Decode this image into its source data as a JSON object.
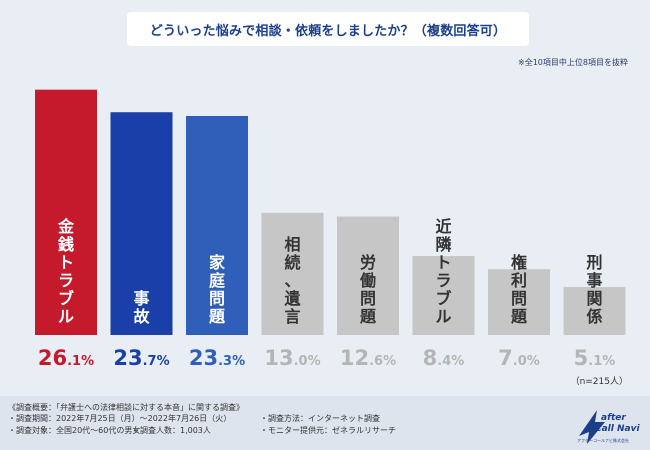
{
  "header": {
    "title": "どういった悩みで相談・依頼をしましたか？（複数回答可）",
    "note": "※全10項目中上位8項目を抜粋"
  },
  "chart_data": {
    "type": "bar",
    "title": "どういった悩みで相談・依頼をしましたか？（複数回答可）",
    "categories": [
      "金銭トラブル",
      "事故",
      "家庭問題",
      "相続、遺言",
      "労働問題",
      "近隣トラブル",
      "権利問題",
      "刑事関係"
    ],
    "values": [
      26.1,
      23.7,
      23.3,
      13.0,
      12.6,
      8.4,
      7.0,
      5.1
    ],
    "value_labels": [
      "26.1%",
      "23.7%",
      "23.3%",
      "13.0%",
      "12.6%",
      "8.4%",
      "7.0%",
      "5.1%"
    ],
    "unit": "%",
    "ylim": [
      0,
      30
    ],
    "xlabel": "",
    "ylabel": "",
    "grid": false,
    "colors": [
      "#c51a2c",
      "#1a3fa8",
      "#2f5fb8",
      "#c6c6c6",
      "#c6c6c6",
      "#c6c6c6",
      "#c6c6c6",
      "#c6c6c6"
    ],
    "label_colors": [
      "#c51a2c",
      "#1a3fa8",
      "#2f5fb8",
      "#b5b5b5",
      "#b5b5b5",
      "#b5b5b5",
      "#b5b5b5",
      "#b5b5b5"
    ],
    "bar_text_colors": [
      "#ffffff",
      "#ffffff",
      "#ffffff",
      "#333333",
      "#333333",
      "#333333",
      "#333333",
      "#333333"
    ]
  },
  "sample": "（n=215人）",
  "footer": {
    "survey_title": "《調査概要：「弁護士への法律相談に対する本音」に関する調査》",
    "period": "・調査期間：2022年7月25日（月）～2022年7月26日（火）",
    "method": "・調査方法：インターネット調査",
    "target": "・調査対象：全国20代～60代の男女",
    "count": "・調査人数：1,003人",
    "provider": "・モニター提供元：ゼネラルリサーチ"
  },
  "logo": {
    "line1": "after",
    "line2": "Call Navi",
    "company": "アフターコールナビ株式会社"
  }
}
